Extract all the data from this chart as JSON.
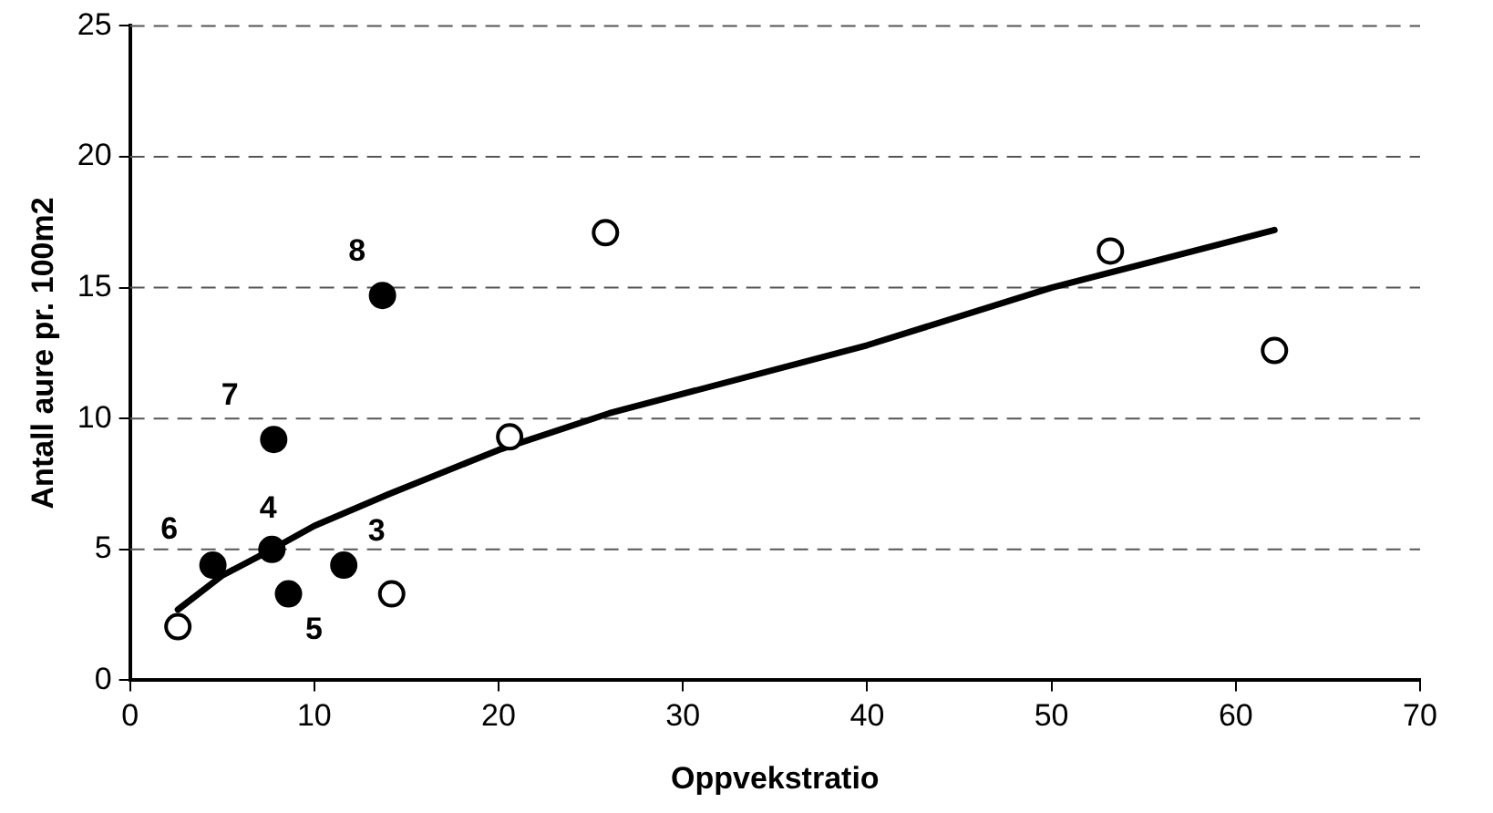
{
  "chart_data": {
    "type": "scatter",
    "xlabel": "Oppvekstratio",
    "ylabel": "Antall aure pr. 100m2",
    "xlim": [
      0,
      70
    ],
    "xticks": [
      0,
      10,
      20,
      30,
      40,
      50,
      60,
      70
    ],
    "ylim": [
      0,
      25
    ],
    "yticks": [
      0,
      5,
      10,
      15,
      20,
      25
    ],
    "grid": "y",
    "legend": false,
    "marker": "circle",
    "series": [
      {
        "type": "scatter",
        "color": "#ffffff",
        "x": [
          2.6,
          14.2,
          20.6,
          25.8,
          53.2,
          62.1
        ],
        "values": [
          2.05,
          3.3,
          9.3,
          17.1,
          16.4,
          12.6
        ]
      },
      {
        "type": "scatter",
        "color": "#000000",
        "x": [
          4.5,
          7.7,
          7.8,
          8.6,
          11.6,
          13.7
        ],
        "values": [
          4.4,
          5.0,
          9.2,
          3.3,
          4.4,
          14.7
        ]
      },
      {
        "type": "line",
        "color": "#000000",
        "line_style": "solid",
        "marker": "none",
        "x": [
          2.6,
          5,
          7.7,
          10,
          14,
          20,
          26,
          40,
          50,
          62.1
        ],
        "values": [
          2.7,
          4.0,
          5.0,
          5.9,
          7.1,
          8.8,
          10.2,
          12.8,
          15.0,
          17.2
        ]
      }
    ],
    "annotations": [
      {
        "text": "3",
        "x": 11.6,
        "y": 4.4
      },
      {
        "text": "4",
        "x": 7.7,
        "y": 5.0
      },
      {
        "text": "5",
        "x": 8.6,
        "y": 3.3
      },
      {
        "text": "6",
        "x": 4.5,
        "y": 4.4
      },
      {
        "text": "7",
        "x": 7.8,
        "y": 9.2
      },
      {
        "text": "8",
        "x": 13.7,
        "y": 14.7
      }
    ]
  }
}
